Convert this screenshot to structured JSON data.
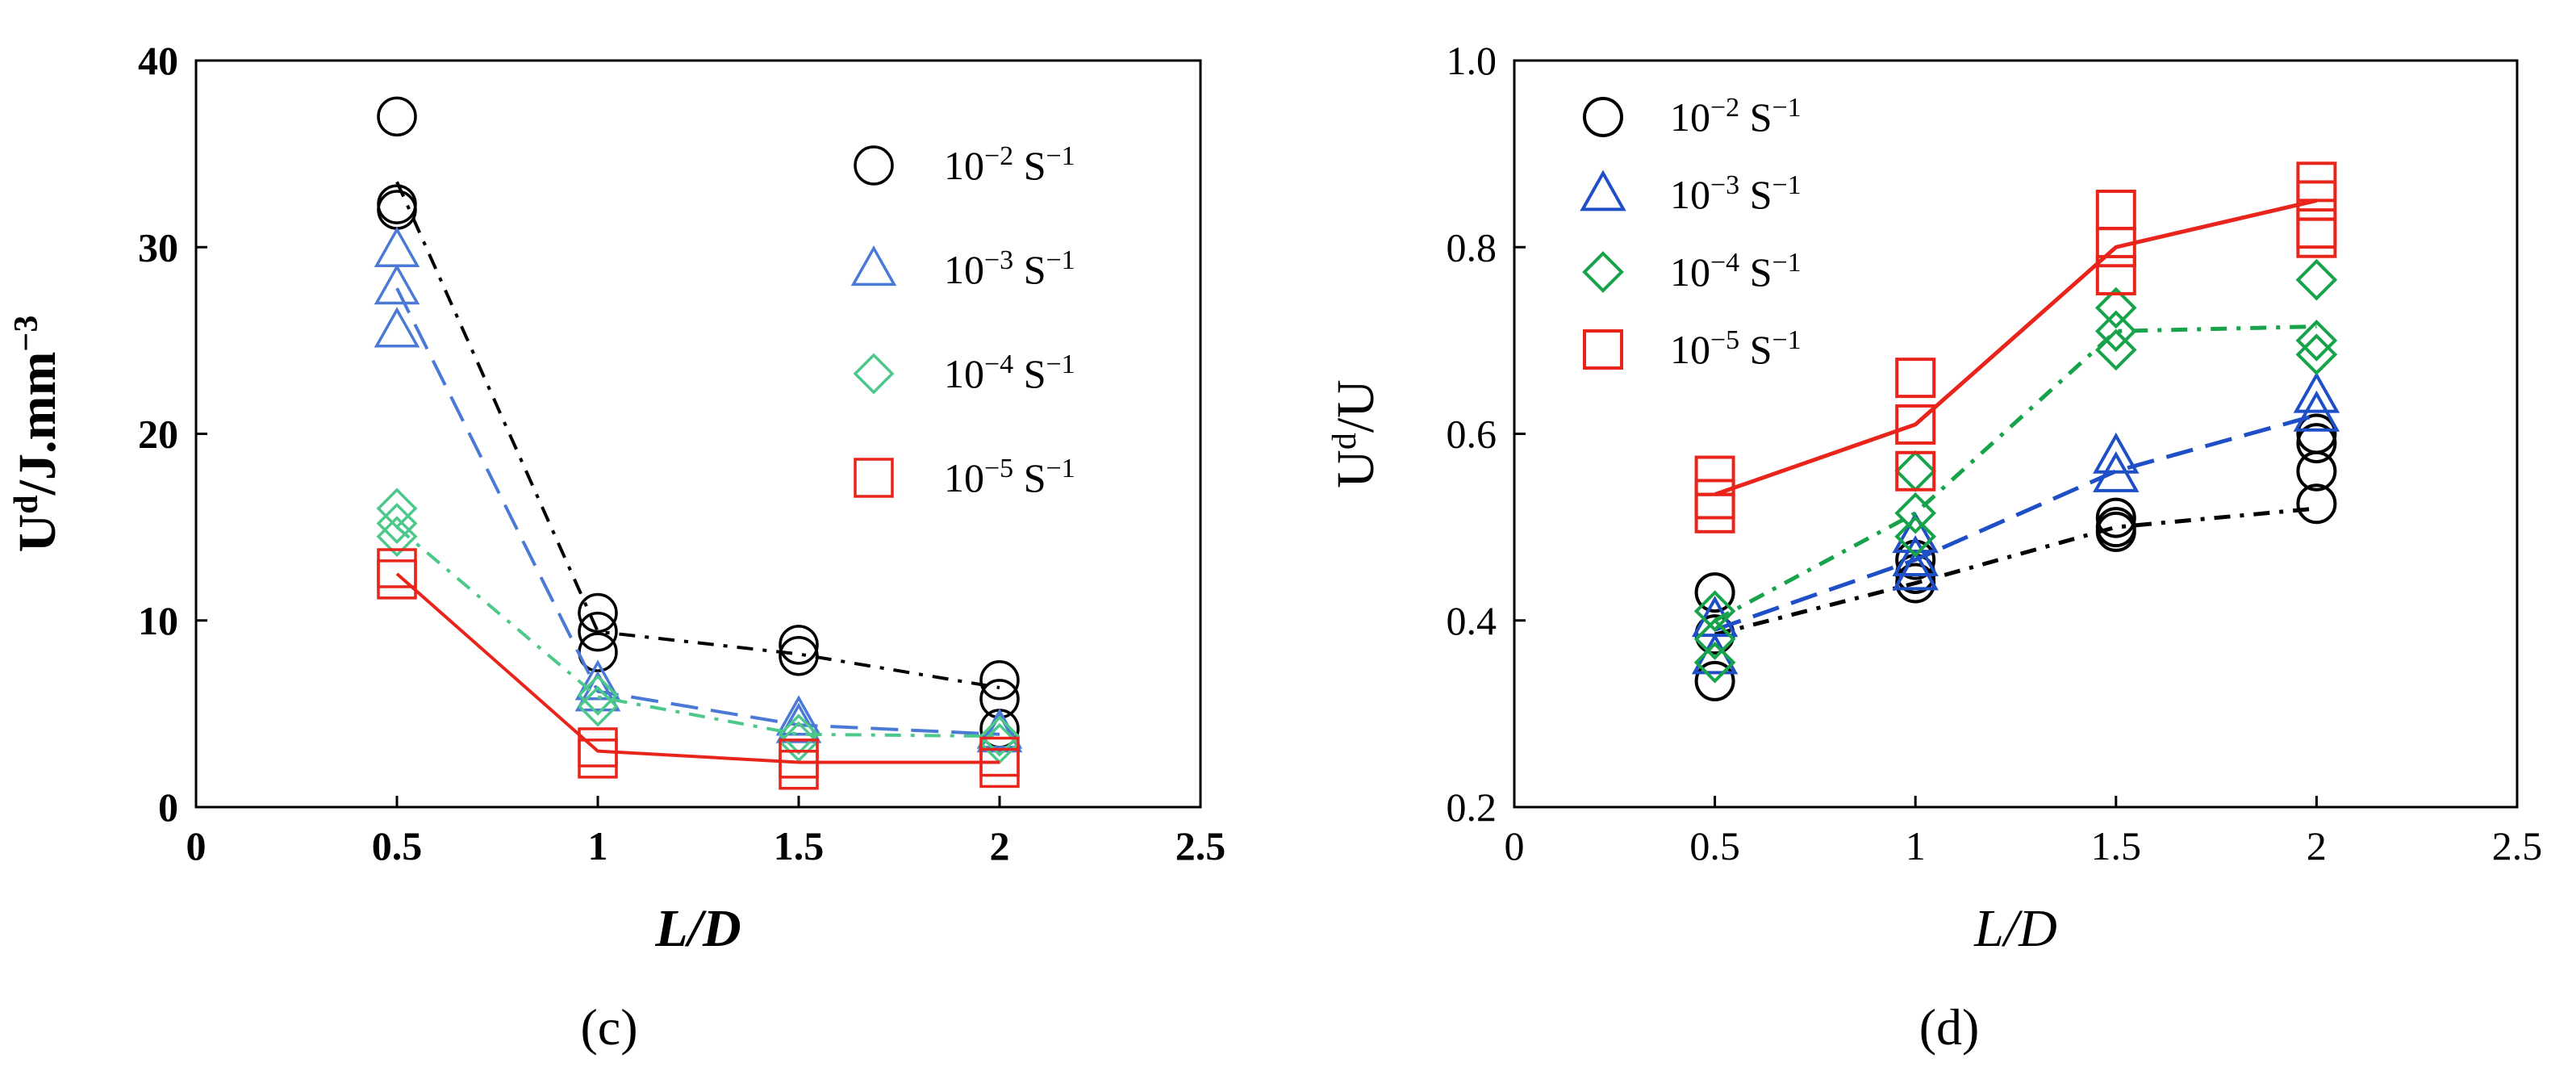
{
  "chart_data": [
    {
      "type": "line",
      "panel_label": "(c)",
      "xlabel": "L/D",
      "ylabel": {
        "base": "U",
        "sup": "d",
        "rest": "/J.mm",
        "sup2": "−3"
      },
      "xlim": [
        0,
        2.5
      ],
      "ylim": [
        0,
        40
      ],
      "xticks": [
        0,
        0.5,
        1,
        1.5,
        2,
        2.5
      ],
      "xtick_labels": [
        "0",
        "0.5",
        "1",
        "1.5",
        "2",
        "2.5"
      ],
      "yticks": [
        0,
        10,
        20,
        30,
        40
      ],
      "ytick_labels": [
        "0",
        "10",
        "20",
        "30",
        "40"
      ],
      "grid": false,
      "legend_position": "top-right",
      "series": [
        {
          "name": "10⁻² S⁻¹",
          "mantissa": "10",
          "exp": "−2",
          "unit": "S",
          "unit_exp": "−1",
          "marker": "circle",
          "color": "#000000",
          "linestyle": "dashdot",
          "line": {
            "x": [
              0.5,
              1,
              1.5,
              2
            ],
            "y": [
              33.5,
              9.4,
              8.2,
              6.4
            ]
          },
          "points": [
            [
              0.5,
              37
            ],
            [
              0.5,
              32.3
            ],
            [
              0.5,
              32
            ],
            [
              1,
              10.4
            ],
            [
              1,
              9.4
            ],
            [
              1,
              8.3
            ],
            [
              1.5,
              8.7
            ],
            [
              1.5,
              8.1
            ],
            [
              2,
              6.8
            ],
            [
              2,
              5.8
            ],
            [
              2,
              4.2
            ]
          ]
        },
        {
          "name": "10⁻³ S⁻¹",
          "mantissa": "10",
          "exp": "−3",
          "unit": "S",
          "unit_exp": "−1",
          "marker": "triangle",
          "color": "#4a79d6",
          "linestyle": "dashed",
          "line": {
            "x": [
              0.5,
              1,
              1.5,
              2
            ],
            "y": [
              27.8,
              6.2,
              4.4,
              3.9
            ]
          },
          "points": [
            [
              0.5,
              29.8
            ],
            [
              0.5,
              27.8
            ],
            [
              0.5,
              25.5
            ],
            [
              1,
              6.6
            ],
            [
              1,
              6.0
            ],
            [
              1.5,
              4.7
            ],
            [
              1.5,
              4.3
            ],
            [
              2,
              4.0
            ],
            [
              2,
              3.8
            ]
          ]
        },
        {
          "name": "10⁻⁴ S⁻¹",
          "mantissa": "10",
          "exp": "−4",
          "unit": "S",
          "unit_exp": "−1",
          "marker": "diamond",
          "color": "#4cc88a",
          "linestyle": "dashdot",
          "line": {
            "x": [
              0.5,
              1,
              1.5,
              2
            ],
            "y": [
              15,
              5.9,
              3.9,
              3.8
            ]
          },
          "points": [
            [
              0.5,
              16.0
            ],
            [
              0.5,
              15.2
            ],
            [
              0.5,
              14.5
            ],
            [
              1,
              6.0
            ],
            [
              1,
              5.4
            ],
            [
              1.5,
              3.9
            ],
            [
              1.5,
              3.5
            ],
            [
              2,
              3.8
            ],
            [
              2,
              3.4
            ]
          ]
        },
        {
          "name": "10⁻⁵ S⁻¹",
          "mantissa": "10",
          "exp": "−5",
          "unit": "S",
          "unit_exp": "−1",
          "marker": "square",
          "color": "#e8241b",
          "linestyle": "solid",
          "line": {
            "x": [
              0.5,
              1,
              1.5,
              2
            ],
            "y": [
              12.5,
              3.0,
              2.4,
              2.4
            ]
          },
          "points": [
            [
              0.5,
              12.8
            ],
            [
              0.5,
              12.2
            ],
            [
              1,
              3.2
            ],
            [
              1,
              2.6
            ],
            [
              1.5,
              2.6
            ],
            [
              1.5,
              2.0
            ],
            [
              2,
              2.7
            ],
            [
              2,
              2.1
            ]
          ]
        }
      ]
    },
    {
      "type": "line",
      "panel_label": "(d)",
      "xlabel": "L/D",
      "ylabel": {
        "base": "U",
        "sup": "d",
        "rest": "/U",
        "sup2": ""
      },
      "xlim": [
        0,
        2.5
      ],
      "ylim": [
        0.2,
        1.0
      ],
      "xticks": [
        0,
        0.5,
        1,
        1.5,
        2,
        2.5
      ],
      "xtick_labels": [
        "0",
        "0.5",
        "1",
        "1.5",
        "2",
        "2.5"
      ],
      "yticks": [
        0.2,
        0.4,
        0.6,
        0.8,
        1.0
      ],
      "ytick_labels": [
        "0.2",
        "0.4",
        "0.6",
        "0.8",
        "1.0"
      ],
      "grid": false,
      "legend_position": "top-left",
      "series": [
        {
          "name": "10⁻² S⁻¹",
          "mantissa": "10",
          "exp": "−2",
          "unit": "S",
          "unit_exp": "−1",
          "marker": "circle",
          "color": "#000000",
          "linestyle": "dashdot",
          "line": {
            "x": [
              0.5,
              1,
              1.5,
              2
            ],
            "y": [
              0.385,
              0.44,
              0.5,
              0.52
            ]
          },
          "points": [
            [
              0.5,
              0.43
            ],
            [
              0.5,
              0.385
            ],
            [
              0.5,
              0.335
            ],
            [
              1,
              0.465
            ],
            [
              1,
              0.45
            ],
            [
              1,
              0.44
            ],
            [
              1.5,
              0.51
            ],
            [
              1.5,
              0.5
            ],
            [
              1.5,
              0.495
            ],
            [
              2,
              0.6
            ],
            [
              2,
              0.59
            ],
            [
              2,
              0.56
            ],
            [
              2,
              0.525
            ]
          ]
        },
        {
          "name": "10⁻³ S⁻¹",
          "mantissa": "10",
          "exp": "−3",
          "unit": "S",
          "unit_exp": "−1",
          "marker": "triangle",
          "color": "#1f4fc6",
          "linestyle": "dashed",
          "line": {
            "x": [
              0.5,
              1,
              1.5,
              2
            ],
            "y": [
              0.39,
              0.465,
              0.56,
              0.62
            ]
          },
          "points": [
            [
              0.5,
              0.4
            ],
            [
              0.5,
              0.36
            ],
            [
              1,
              0.49
            ],
            [
              1,
              0.465
            ],
            [
              1,
              0.45
            ],
            [
              1.5,
              0.575
            ],
            [
              1.5,
              0.555
            ],
            [
              2,
              0.64
            ],
            [
              2,
              0.62
            ]
          ]
        },
        {
          "name": "10⁻⁴ S⁻¹",
          "mantissa": "10",
          "exp": "−4",
          "unit": "S",
          "unit_exp": "−1",
          "marker": "diamond",
          "color": "#16a34a",
          "linestyle": "dashdot",
          "line": {
            "x": [
              0.5,
              1,
              1.5,
              2
            ],
            "y": [
              0.4,
              0.515,
              0.71,
              0.715
            ]
          },
          "points": [
            [
              0.5,
              0.41
            ],
            [
              0.5,
              0.38
            ],
            [
              0.5,
              0.355
            ],
            [
              1,
              0.56
            ],
            [
              1,
              0.515
            ],
            [
              1,
              0.49
            ],
            [
              1.5,
              0.735
            ],
            [
              1.5,
              0.71
            ],
            [
              1.5,
              0.69
            ],
            [
              2,
              0.765
            ],
            [
              2,
              0.7
            ],
            [
              2,
              0.685
            ]
          ]
        },
        {
          "name": "10⁻⁵ S⁻¹",
          "mantissa": "10",
          "exp": "−5",
          "unit": "S",
          "unit_exp": "−1",
          "marker": "square",
          "color": "#e8241b",
          "linestyle": "solid",
          "line": {
            "x": [
              0.5,
              1,
              1.5,
              2
            ],
            "y": [
              0.535,
              0.61,
              0.8,
              0.85
            ]
          },
          "points": [
            [
              0.5,
              0.555
            ],
            [
              0.5,
              0.53
            ],
            [
              0.5,
              0.515
            ],
            [
              1,
              0.66
            ],
            [
              1,
              0.61
            ],
            [
              1,
              0.56
            ],
            [
              1.5,
              0.84
            ],
            [
              1.5,
              0.8
            ],
            [
              1.5,
              0.77
            ],
            [
              2,
              0.87
            ],
            [
              2,
              0.85
            ],
            [
              2,
              0.82
            ],
            [
              2,
              0.81
            ]
          ]
        }
      ]
    }
  ]
}
